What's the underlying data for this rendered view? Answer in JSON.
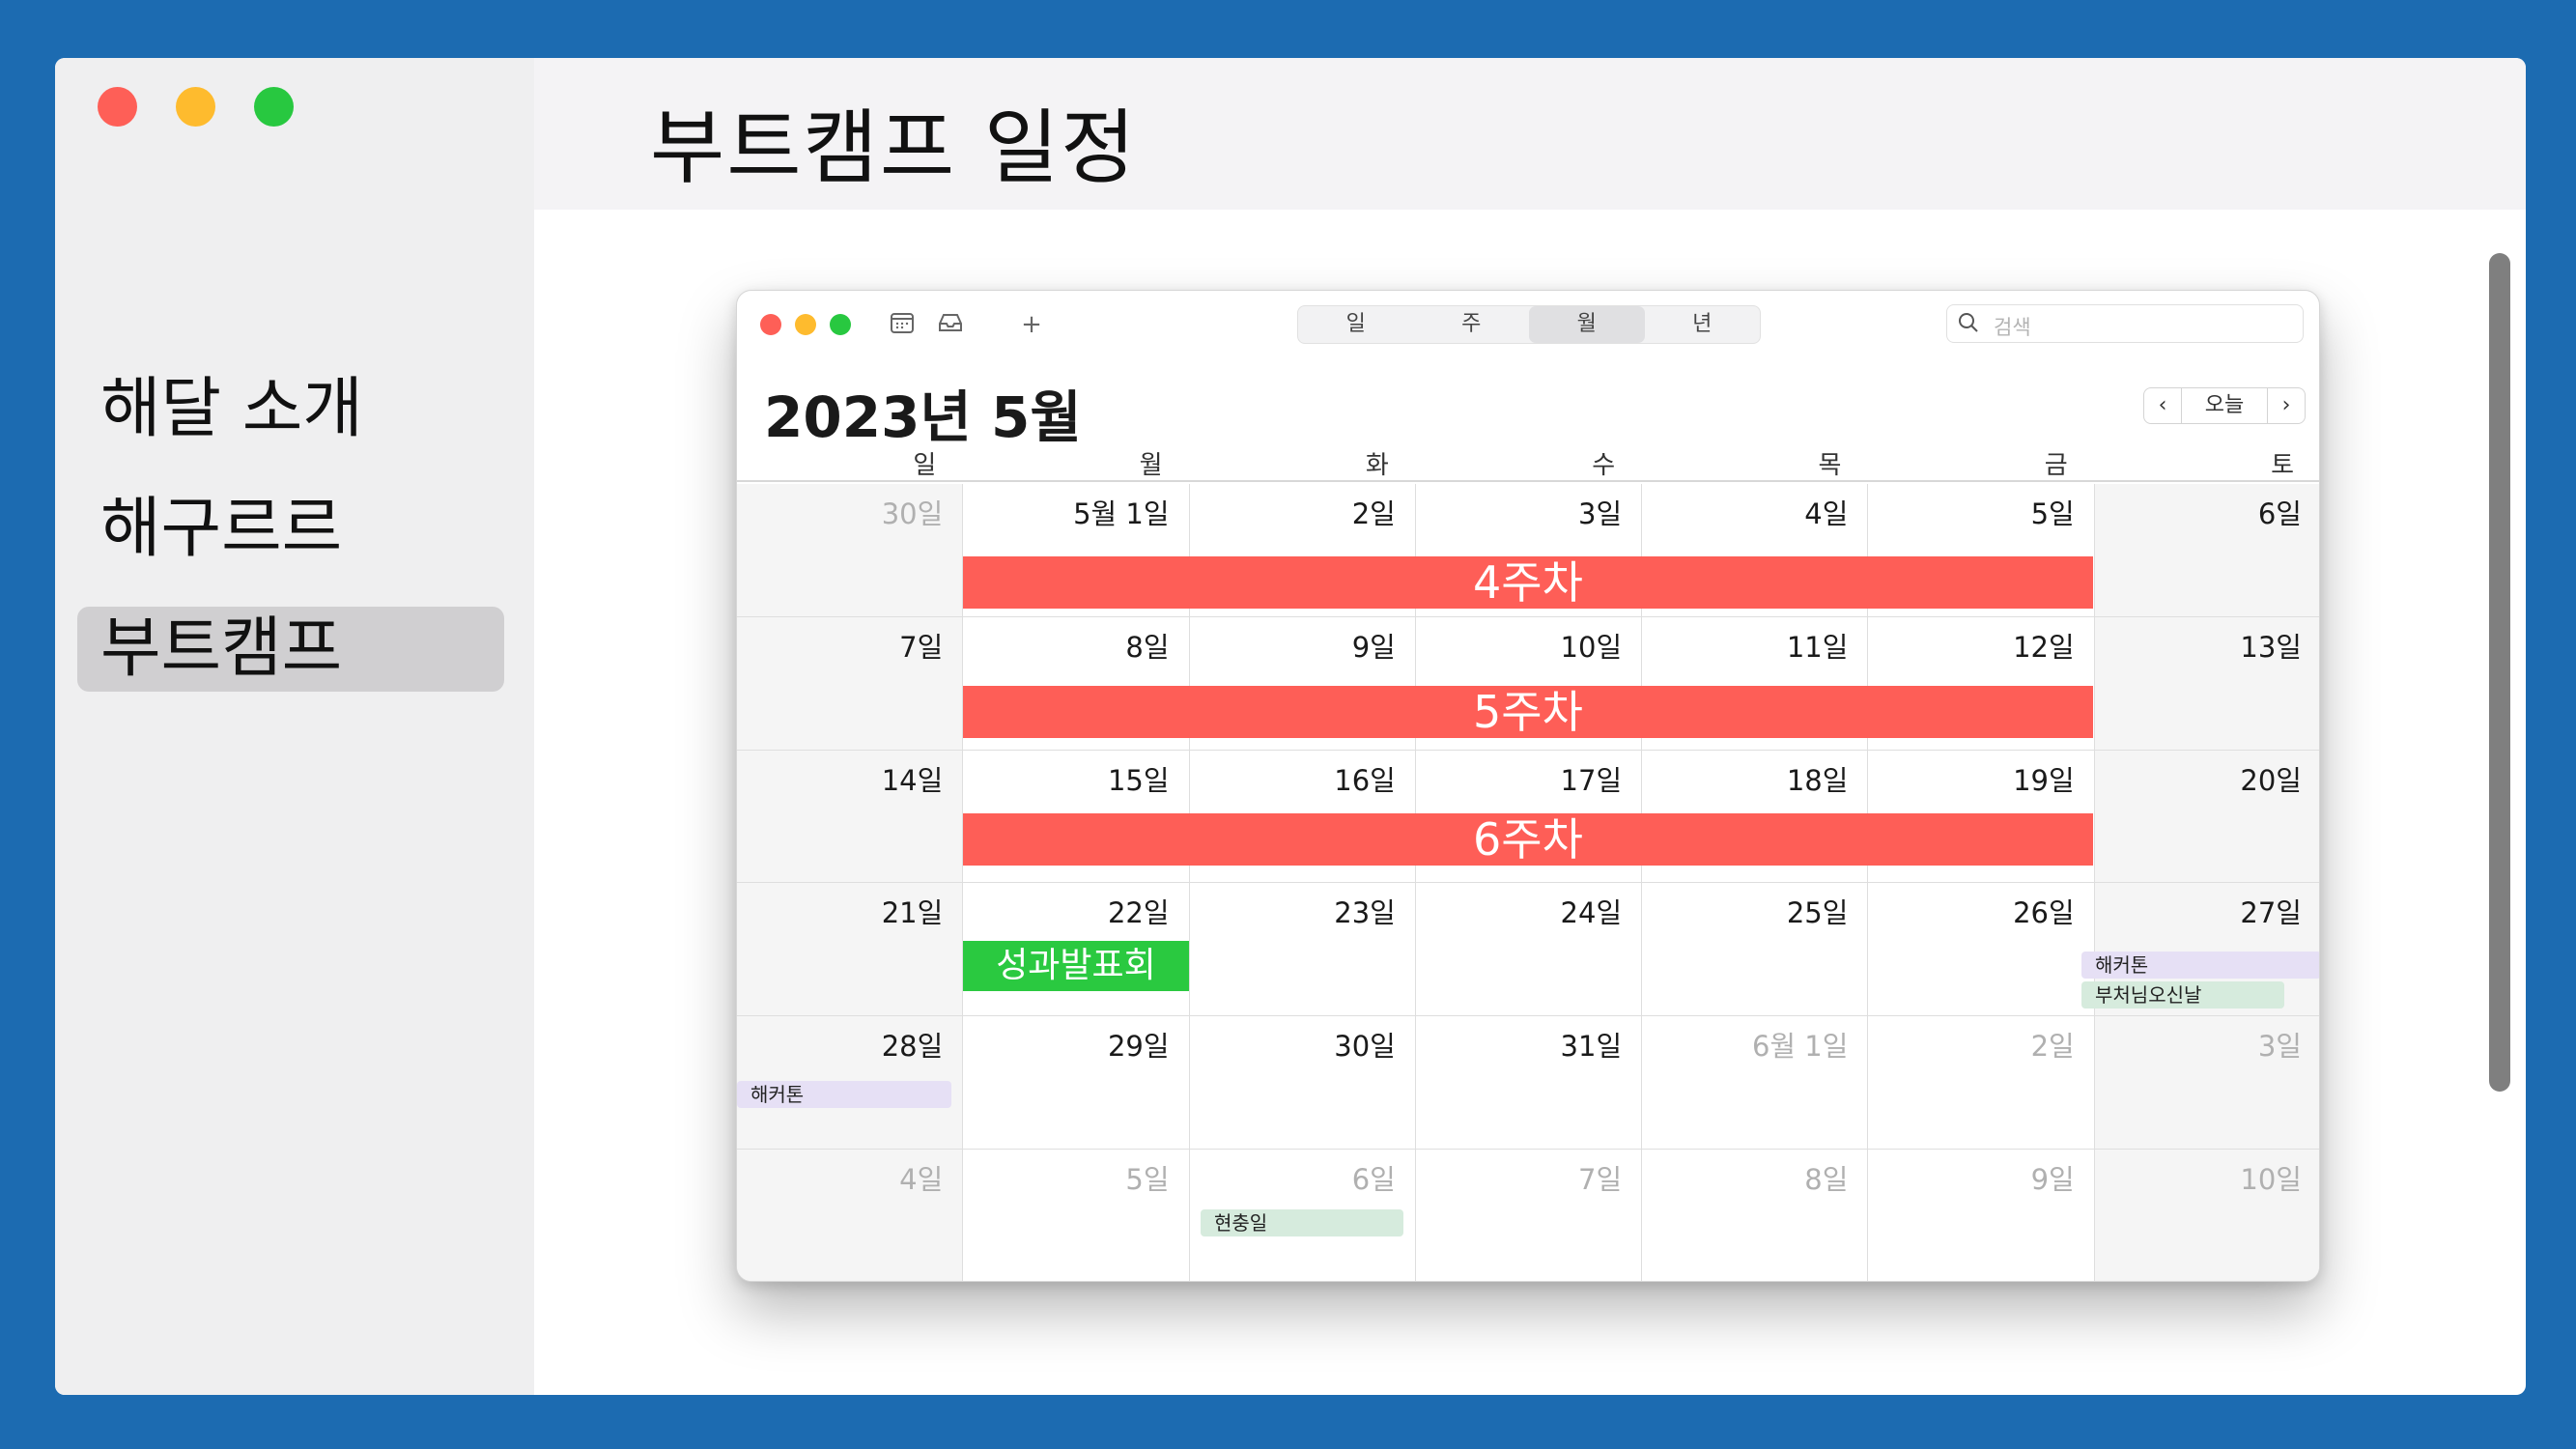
{
  "sidebar": {
    "items": [
      {
        "label": "해달  소개"
      },
      {
        "label": "해구르르"
      },
      {
        "label": "부트캠프"
      }
    ]
  },
  "header": {
    "title": "부트캠프  일정"
  },
  "calendar": {
    "toolbar": {
      "views": [
        "일",
        "주",
        "월",
        "년"
      ],
      "active_view": "월",
      "add_label": "+",
      "search_placeholder": "검색"
    },
    "title": "2023년 5월",
    "today_label": "오늘",
    "prev_label": "‹",
    "next_label": "›",
    "weekdays": [
      "일",
      "월",
      "화",
      "수",
      "목",
      "금",
      "토"
    ],
    "weeks": [
      [
        "30일",
        "5월 1일",
        "2일",
        "3일",
        "4일",
        "5일",
        "6일"
      ],
      [
        "7일",
        "8일",
        "9일",
        "10일",
        "11일",
        "12일",
        "13일"
      ],
      [
        "14일",
        "15일",
        "16일",
        "17일",
        "18일",
        "19일",
        "20일"
      ],
      [
        "21일",
        "22일",
        "23일",
        "24일",
        "25일",
        "26일",
        "27일"
      ],
      [
        "28일",
        "29일",
        "30일",
        "31일",
        "6월 1일",
        "2일",
        "3일"
      ],
      [
        "4일",
        "5일",
        "6일",
        "7일",
        "8일",
        "9일",
        "10일"
      ]
    ],
    "events": {
      "week4": "4주차",
      "week5": "5주차",
      "week6": "6주차",
      "presentation": "성과발표회",
      "hackathon_27": "해커톤",
      "parents_day": "부처님오신날",
      "hackathon_28": "해커톤",
      "memorial_day": "현충일"
    },
    "colors": {
      "week_bar": "#fe5e57",
      "presentation": "#2ac940",
      "hackathon": "#e6e0f5",
      "holiday": "#d6ebdd"
    }
  }
}
